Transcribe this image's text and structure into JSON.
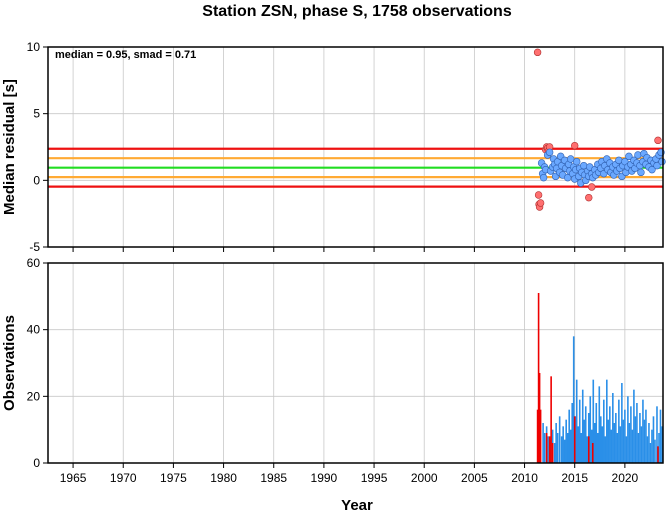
{
  "title": "Station ZSN, phase S, 1758 observations",
  "colors": {
    "median_line": "#22dd22",
    "smad_line": "#ffaa33",
    "two_smad_line": "#ee1111",
    "point_in": "#6aa8ff",
    "point_out": "#ff7070",
    "bar_in": "#2a8fe8",
    "bar_out": "#ee0000",
    "grid": "#c8c8c8"
  },
  "chart_data": [
    {
      "type": "scatter",
      "annotation": "median = 0.95, smad = 0.71",
      "xlabel": "",
      "ylabel": "Median residual [s]",
      "xlim": [
        1962.5,
        2023.8
      ],
      "ylim": [
        -5,
        10
      ],
      "xticks": [
        1965,
        1970,
        1975,
        1980,
        1985,
        1990,
        1995,
        2000,
        2005,
        2010,
        2015,
        2020
      ],
      "yticks": [
        -5,
        0,
        5,
        10
      ],
      "grid": true,
      "reference_lines": [
        {
          "name": "median",
          "y": 0.95,
          "color_key": "median_line"
        },
        {
          "name": "median+smad",
          "y": 1.66,
          "color_key": "smad_line"
        },
        {
          "name": "median-smad",
          "y": 0.24,
          "color_key": "smad_line"
        },
        {
          "name": "median+2smad",
          "y": 2.37,
          "color_key": "two_smad_line"
        },
        {
          "name": "median-2smad",
          "y": -0.47,
          "color_key": "two_smad_line"
        }
      ],
      "points_inlier": [
        [
          2011.7,
          1.3
        ],
        [
          2011.8,
          0.5
        ],
        [
          2011.9,
          0.2
        ],
        [
          2012.0,
          1.0
        ],
        [
          2012.1,
          0.8
        ],
        [
          2012.3,
          1.9
        ],
        [
          2012.5,
          2.1
        ],
        [
          2012.6,
          0.7
        ],
        [
          2012.8,
          1.0
        ],
        [
          2012.9,
          1.6
        ],
        [
          2013.0,
          1.2
        ],
        [
          2013.1,
          0.3
        ],
        [
          2013.2,
          0.9
        ],
        [
          2013.3,
          1.4
        ],
        [
          2013.5,
          0.6
        ],
        [
          2013.6,
          1.8
        ],
        [
          2013.7,
          1.1
        ],
        [
          2013.8,
          0.4
        ],
        [
          2014.0,
          1.5
        ],
        [
          2014.1,
          0.9
        ],
        [
          2014.3,
          0.2
        ],
        [
          2014.4,
          1.2
        ],
        [
          2014.5,
          0.7
        ],
        [
          2014.6,
          1.6
        ],
        [
          2014.8,
          0.5
        ],
        [
          2014.9,
          1.0
        ],
        [
          2015.0,
          0.1
        ],
        [
          2015.1,
          0.8
        ],
        [
          2015.2,
          1.4
        ],
        [
          2015.4,
          0.3
        ],
        [
          2015.5,
          0.9
        ],
        [
          2015.6,
          -0.2
        ],
        [
          2015.7,
          0.6
        ],
        [
          2015.9,
          1.1
        ],
        [
          2016.0,
          0.4
        ],
        [
          2016.1,
          0.0
        ],
        [
          2016.3,
          0.7
        ],
        [
          2016.4,
          0.3
        ],
        [
          2016.5,
          1.0
        ],
        [
          2016.7,
          0.5
        ],
        [
          2016.8,
          0.2
        ],
        [
          2017.0,
          0.8
        ],
        [
          2017.1,
          0.4
        ],
        [
          2017.3,
          1.2
        ],
        [
          2017.4,
          0.6
        ],
        [
          2017.6,
          0.9
        ],
        [
          2017.7,
          1.4
        ],
        [
          2017.9,
          0.5
        ],
        [
          2018.0,
          1.1
        ],
        [
          2018.2,
          1.6
        ],
        [
          2018.3,
          0.8
        ],
        [
          2018.5,
          1.3
        ],
        [
          2018.6,
          0.6
        ],
        [
          2018.8,
          1.0
        ],
        [
          2018.9,
          0.4
        ],
        [
          2019.1,
          1.2
        ],
        [
          2019.2,
          0.7
        ],
        [
          2019.4,
          1.5
        ],
        [
          2019.5,
          0.9
        ],
        [
          2019.7,
          0.3
        ],
        [
          2019.8,
          1.1
        ],
        [
          2020.0,
          1.4
        ],
        [
          2020.1,
          0.6
        ],
        [
          2020.3,
          1.0
        ],
        [
          2020.4,
          1.8
        ],
        [
          2020.6,
          1.2
        ],
        [
          2020.7,
          0.7
        ],
        [
          2020.9,
          1.5
        ],
        [
          2021.0,
          0.9
        ],
        [
          2021.2,
          1.3
        ],
        [
          2021.3,
          1.9
        ],
        [
          2021.5,
          1.1
        ],
        [
          2021.6,
          0.6
        ],
        [
          2021.8,
          1.4
        ],
        [
          2021.9,
          2.0
        ],
        [
          2022.1,
          1.2
        ],
        [
          2022.2,
          1.7
        ],
        [
          2022.4,
          1.0
        ],
        [
          2022.6,
          1.5
        ],
        [
          2022.7,
          0.8
        ],
        [
          2022.9,
          1.3
        ],
        [
          2023.1,
          1.6
        ],
        [
          2023.2,
          1.1
        ],
        [
          2023.4,
          1.9
        ],
        [
          2023.6,
          2.1
        ],
        [
          2023.7,
          1.4
        ]
      ],
      "points_outlier": [
        [
          2011.3,
          9.6
        ],
        [
          2011.4,
          -1.1
        ],
        [
          2011.45,
          -1.8
        ],
        [
          2011.5,
          -2.0
        ],
        [
          2011.6,
          -1.7
        ],
        [
          2012.1,
          2.3
        ],
        [
          2012.2,
          2.5
        ],
        [
          2012.3,
          2.4
        ],
        [
          2012.4,
          2.2
        ],
        [
          2012.5,
          2.5
        ],
        [
          2015.0,
          2.6
        ],
        [
          2016.4,
          -1.3
        ],
        [
          2016.7,
          -0.5
        ],
        [
          2023.3,
          3.0
        ]
      ]
    },
    {
      "type": "bar",
      "xlabel": "Year",
      "ylabel": "Observations",
      "xlim": [
        1962.5,
        2023.8
      ],
      "ylim": [
        0,
        60
      ],
      "xticks": [
        1965,
        1970,
        1975,
        1980,
        1985,
        1990,
        1995,
        2000,
        2005,
        2010,
        2015,
        2020
      ],
      "yticks": [
        0,
        20,
        40,
        60
      ],
      "grid": true,
      "series": [
        {
          "name": "inlier",
          "color_key": "bar_in",
          "points": [
            [
              2011.85,
              12
            ],
            [
              2012.0,
              9
            ],
            [
              2012.2,
              11
            ],
            [
              2012.35,
              8
            ],
            [
              2012.6,
              7
            ],
            [
              2012.8,
              10
            ],
            [
              2013.0,
              6
            ],
            [
              2013.15,
              12
            ],
            [
              2013.3,
              9
            ],
            [
              2013.5,
              14
            ],
            [
              2013.7,
              8
            ],
            [
              2013.85,
              11
            ],
            [
              2014.0,
              7
            ],
            [
              2014.15,
              13
            ],
            [
              2014.3,
              9
            ],
            [
              2014.45,
              16
            ],
            [
              2014.6,
              10
            ],
            [
              2014.75,
              18
            ],
            [
              2014.9,
              38
            ],
            [
              2015.05,
              14
            ],
            [
              2015.2,
              25
            ],
            [
              2015.35,
              11
            ],
            [
              2015.5,
              19
            ],
            [
              2015.65,
              9
            ],
            [
              2015.8,
              22
            ],
            [
              2015.95,
              13
            ],
            [
              2016.1,
              17
            ],
            [
              2016.25,
              8
            ],
            [
              2016.4,
              15
            ],
            [
              2016.55,
              20
            ],
            [
              2016.7,
              10
            ],
            [
              2016.85,
              25
            ],
            [
              2017.0,
              12
            ],
            [
              2017.15,
              18
            ],
            [
              2017.3,
              9
            ],
            [
              2017.45,
              23
            ],
            [
              2017.6,
              14
            ],
            [
              2017.75,
              11
            ],
            [
              2017.9,
              19
            ],
            [
              2018.05,
              8
            ],
            [
              2018.2,
              25
            ],
            [
              2018.35,
              13
            ],
            [
              2018.5,
              17
            ],
            [
              2018.65,
              10
            ],
            [
              2018.8,
              21
            ],
            [
              2018.95,
              12
            ],
            [
              2019.1,
              15
            ],
            [
              2019.25,
              9
            ],
            [
              2019.4,
              19
            ],
            [
              2019.55,
              11
            ],
            [
              2019.7,
              24
            ],
            [
              2019.85,
              13
            ],
            [
              2020.0,
              16
            ],
            [
              2020.15,
              8
            ],
            [
              2020.3,
              20
            ],
            [
              2020.45,
              12
            ],
            [
              2020.6,
              17
            ],
            [
              2020.75,
              10
            ],
            [
              2020.9,
              22
            ],
            [
              2021.05,
              14
            ],
            [
              2021.2,
              18
            ],
            [
              2021.35,
              9
            ],
            [
              2021.5,
              15
            ],
            [
              2021.65,
              11
            ],
            [
              2021.8,
              19
            ],
            [
              2021.95,
              13
            ],
            [
              2022.1,
              16
            ],
            [
              2022.25,
              8
            ],
            [
              2022.4,
              12
            ],
            [
              2022.55,
              6
            ],
            [
              2022.7,
              10
            ],
            [
              2022.85,
              14
            ],
            [
              2023.0,
              7
            ],
            [
              2023.2,
              17
            ],
            [
              2023.4,
              9
            ],
            [
              2023.55,
              16
            ],
            [
              2023.7,
              11
            ]
          ]
        },
        {
          "name": "outlier",
          "color_key": "bar_out",
          "points": [
            [
              2011.3,
              16
            ],
            [
              2011.4,
              51
            ],
            [
              2011.5,
              27
            ],
            [
              2011.6,
              16
            ],
            [
              2012.2,
              9
            ],
            [
              2012.5,
              8
            ],
            [
              2012.65,
              26
            ],
            [
              2012.8,
              6
            ],
            [
              2015.0,
              14
            ],
            [
              2016.4,
              8
            ],
            [
              2016.8,
              6
            ],
            [
              2023.3,
              5
            ]
          ]
        }
      ]
    }
  ]
}
